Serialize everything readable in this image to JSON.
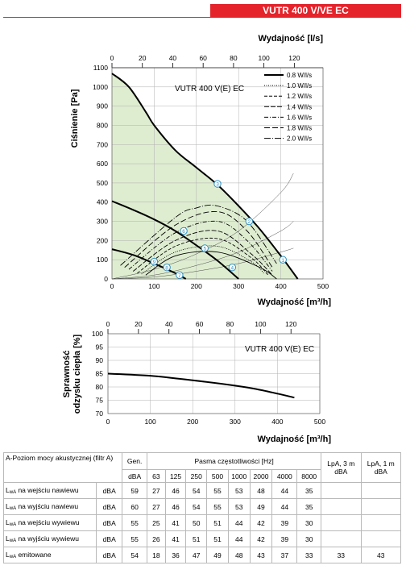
{
  "model_banner": "VUTR 400 V/VE EC",
  "colors": {
    "accent": "#e4232b",
    "fill": "#deedd0",
    "grid": "#b0b0b0"
  },
  "chart_data": [
    {
      "type": "line",
      "title": "VUTR 400 V(E) EC",
      "xlabel": "Wydajność [m³/h]",
      "x2label": "Wydajność [l/s]",
      "ylabel": "Ciśnienie [Pa]",
      "xlim": [
        0,
        500
      ],
      "ylim": [
        0,
        1100
      ],
      "x2lim": [
        0,
        138.9
      ],
      "xticks": [
        "0",
        "100",
        "200",
        "300",
        "400",
        "500"
      ],
      "x2ticks": [
        "0",
        "20",
        "40",
        "60",
        "80",
        "100",
        "120"
      ],
      "yticks": [
        "0",
        "100",
        "200",
        "300",
        "400",
        "500",
        "600",
        "700",
        "800",
        "900",
        "1000",
        "1100"
      ],
      "series": [
        {
          "name": "",
          "style": "fan",
          "x": [
            0,
            40,
            80,
            100,
            150,
            200,
            250,
            300,
            350,
            400,
            440
          ],
          "y": [
            1070,
            1000,
            870,
            800,
            670,
            580,
            490,
            380,
            260,
            120,
            0
          ]
        },
        {
          "name": "",
          "style": "fan",
          "x": [
            0,
            50,
            100,
            150,
            200,
            250,
            300
          ],
          "y": [
            405,
            360,
            310,
            250,
            175,
            95,
            0
          ]
        },
        {
          "name": "",
          "style": "fan",
          "x": [
            0,
            50,
            100,
            150,
            175
          ],
          "y": [
            155,
            125,
            80,
            30,
            0
          ]
        }
      ],
      "sfp_legend": [
        "0.8 W/l/s",
        "1.0 W/l/s",
        "1.2 W/l/s",
        "1.4 W/l/s",
        "1.6 W/l/s",
        "1.8 W/l/s",
        "2.0 W/l/s"
      ],
      "sfp_curves": [
        {
          "dash": "",
          "x": [
            80,
            150,
            250,
            350,
            390
          ],
          "y": [
            20,
            120,
            140,
            60,
            0
          ]
        },
        {
          "dash": "1,1.5",
          "x": [
            70,
            150,
            250,
            330,
            360
          ],
          "y": [
            25,
            140,
            170,
            90,
            30
          ]
        },
        {
          "dash": "4,2",
          "x": [
            60,
            150,
            250,
            330,
            370
          ],
          "y": [
            30,
            170,
            210,
            110,
            20
          ]
        },
        {
          "dash": "6,2",
          "x": [
            50,
            150,
            250,
            330,
            380
          ],
          "y": [
            40,
            200,
            250,
            130,
            20
          ]
        },
        {
          "dash": "5,2,1,2",
          "x": [
            40,
            150,
            250,
            320,
            380
          ],
          "y": [
            50,
            240,
            300,
            200,
            40
          ]
        },
        {
          "dash": "7,3",
          "x": [
            30,
            150,
            250,
            320,
            380
          ],
          "y": [
            60,
            280,
            350,
            250,
            60
          ]
        },
        {
          "dash": "8,2,1,2",
          "x": [
            20,
            150,
            200,
            250,
            320,
            390
          ],
          "y": [
            70,
            320,
            370,
            380,
            300,
            80
          ]
        }
      ],
      "system_curves": [
        {
          "x": [
            0,
            100,
            200,
            300,
            400,
            430
          ],
          "y": [
            0,
            50,
            130,
            250,
            450,
            550
          ]
        },
        {
          "x": [
            0,
            100,
            200,
            300,
            400,
            430
          ],
          "y": [
            0,
            20,
            70,
            140,
            250,
            300
          ]
        },
        {
          "x": [
            0,
            100,
            200,
            300,
            400,
            430
          ],
          "y": [
            0,
            10,
            40,
            80,
            140,
            160
          ]
        }
      ],
      "points": [
        {
          "label": "1",
          "x": 405,
          "y": 100
        },
        {
          "label": "2",
          "x": 325,
          "y": 300
        },
        {
          "label": "3",
          "x": 250,
          "y": 495
        },
        {
          "label": "4",
          "x": 285,
          "y": 60
        },
        {
          "label": "5",
          "x": 220,
          "y": 160
        },
        {
          "label": "6",
          "x": 170,
          "y": 250
        },
        {
          "label": "7",
          "x": 160,
          "y": 20
        },
        {
          "label": "8",
          "x": 130,
          "y": 60
        },
        {
          "label": "9",
          "x": 100,
          "y": 90
        }
      ]
    },
    {
      "type": "line",
      "title": "VUTR 400 V(E) EC",
      "xlabel": "Wydajność [m³/h]",
      "x2label": "",
      "ylabel": "Sprawność odzysku ciepła [%]",
      "xlim": [
        0,
        500
      ],
      "ylim": [
        70,
        100
      ],
      "x2lim": [
        0,
        138.9
      ],
      "xticks": [
        "0",
        "100",
        "200",
        "300",
        "400",
        "500"
      ],
      "x2ticks": [
        "0",
        "20",
        "40",
        "60",
        "80",
        "100",
        "120"
      ],
      "yticks": [
        "70",
        "75",
        "80",
        "85",
        "90",
        "95",
        "100"
      ],
      "series": [
        {
          "name": "",
          "x": [
            0,
            100,
            200,
            300,
            350,
            400,
            440
          ],
          "y": [
            85,
            84.2,
            82.5,
            80.5,
            79.2,
            77.5,
            76
          ]
        }
      ]
    }
  ],
  "lang_ylabel_line1": "Sprawność",
  "lang_ylabel_line2": "odzysku ciepła [%]",
  "table": {
    "title": "A-Poziom mocy akustycznej (filtr A)",
    "gen_header": "Gen.",
    "bands_header": "Pasma częstotliwości [Hz]",
    "lpa3_header": "LpA, 3 m dBA",
    "lpa1_header": "LpA, 1 m dBA",
    "unit": "dBA",
    "bands": [
      "63",
      "125",
      "250",
      "500",
      "1000",
      "2000",
      "4000",
      "8000"
    ],
    "rows": [
      {
        "label_pre": "L",
        "label_sub": "wA",
        "label_post": " na wejściu nawiewu",
        "unit": "dBA",
        "gen": "59",
        "values": [
          "27",
          "46",
          "54",
          "55",
          "53",
          "48",
          "44",
          "35"
        ],
        "lpa3": "",
        "lpa1": ""
      },
      {
        "label_pre": "L",
        "label_sub": "wA",
        "label_post": " na wyjściu nawiewu",
        "unit": "dBA",
        "gen": "60",
        "values": [
          "27",
          "46",
          "54",
          "55",
          "53",
          "49",
          "44",
          "35"
        ],
        "lpa3": "",
        "lpa1": ""
      },
      {
        "label_pre": "L",
        "label_sub": "wA",
        "label_post": " na wejściu wywiewu",
        "unit": "dBA",
        "gen": "55",
        "values": [
          "25",
          "41",
          "50",
          "51",
          "44",
          "42",
          "39",
          "30"
        ],
        "lpa3": "",
        "lpa1": ""
      },
      {
        "label_pre": "L",
        "label_sub": "wA",
        "label_post": " na wyjściu wywiewu",
        "unit": "dBA",
        "gen": "55",
        "values": [
          "26",
          "41",
          "51",
          "51",
          "44",
          "42",
          "39",
          "30"
        ],
        "lpa3": "",
        "lpa1": ""
      },
      {
        "label_pre": "L",
        "label_sub": "wA",
        "label_post": " emitowane",
        "unit": "dBA",
        "gen": "54",
        "values": [
          "18",
          "36",
          "47",
          "49",
          "48",
          "43",
          "37",
          "33"
        ],
        "lpa3": "33",
        "lpa1": "43"
      }
    ]
  }
}
